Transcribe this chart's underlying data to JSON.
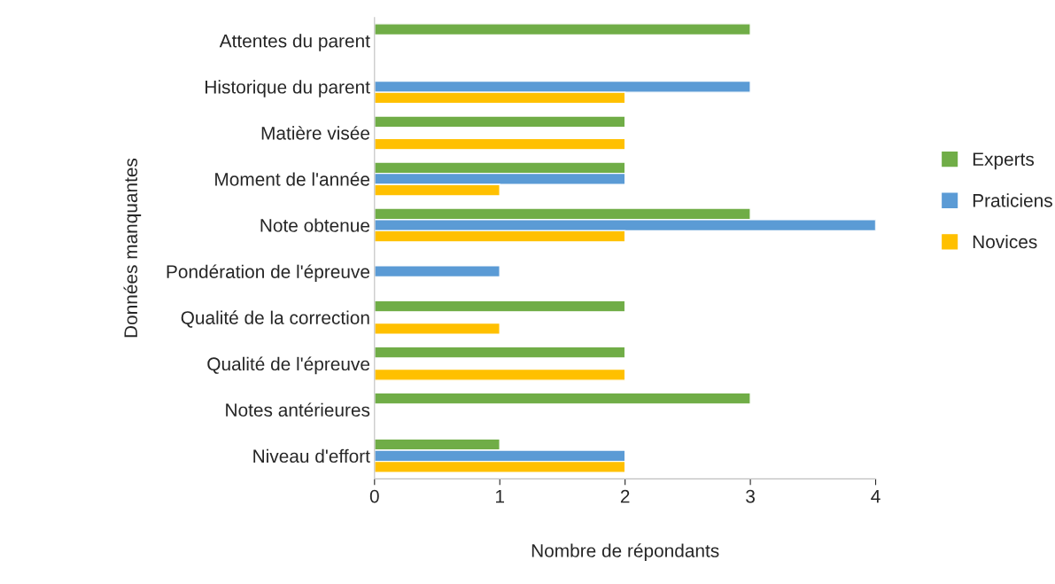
{
  "chart_data": {
    "type": "bar",
    "orientation": "horizontal",
    "xlabel": "Nombre de répondants",
    "ylabel": "Données manquantes",
    "categories": [
      "Attentes du parent",
      "Historique du parent",
      "Matière visée",
      "Moment de l'année",
      "Note obtenue",
      "Pondération de l'épreuve",
      "Qualité de la correction",
      "Qualité de l'épreuve",
      "Notes antérieures",
      "Niveau d'effort"
    ],
    "series": [
      {
        "name": "Experts",
        "color": "#70ad47",
        "values": [
          3,
          null,
          2,
          2,
          3,
          null,
          2,
          2,
          3,
          1
        ]
      },
      {
        "name": "Praticiens",
        "color": "#5b9bd5",
        "values": [
          null,
          3,
          null,
          2,
          4,
          1,
          null,
          null,
          null,
          2
        ]
      },
      {
        "name": "Novices",
        "color": "#ffc000",
        "values": [
          null,
          2,
          2,
          1,
          2,
          null,
          1,
          2,
          null,
          2
        ]
      }
    ],
    "xlim": [
      0,
      4
    ],
    "xticks": [
      0,
      1,
      2,
      3,
      4
    ],
    "grid": false,
    "legend": "right"
  }
}
